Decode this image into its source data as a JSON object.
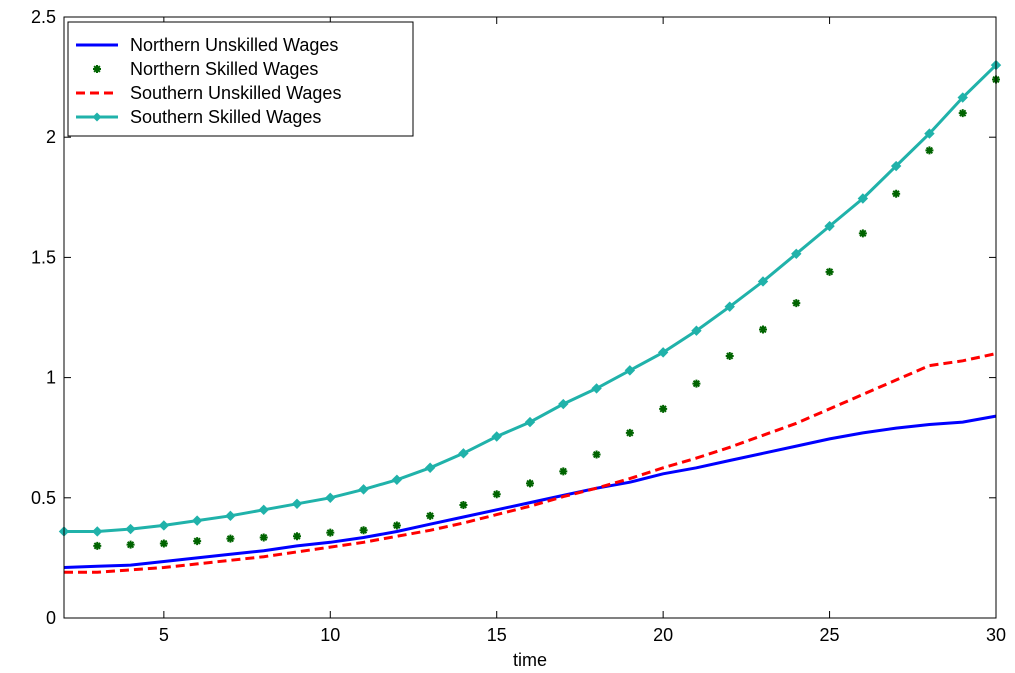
{
  "chart_data": {
    "type": "line",
    "title": "",
    "xlabel": "time",
    "ylabel": "",
    "xlim": [
      2,
      30
    ],
    "ylim": [
      0,
      2.5
    ],
    "xticks": [
      5,
      10,
      15,
      20,
      25,
      30
    ],
    "xtick_labels": [
      "5",
      "10",
      "15",
      "20",
      "25",
      "30"
    ],
    "yticks": [
      0,
      0.5,
      1,
      1.5,
      2,
      2.5
    ],
    "ytick_labels": [
      "0",
      "0.5",
      "1",
      "1.5",
      "2",
      "2.5"
    ],
    "grid": false,
    "legend_position": "top-left",
    "x": [
      2,
      3,
      4,
      5,
      6,
      7,
      8,
      9,
      10,
      11,
      12,
      13,
      14,
      15,
      16,
      17,
      18,
      19,
      20,
      21,
      22,
      23,
      24,
      25,
      26,
      27,
      28,
      29,
      30
    ],
    "series": [
      {
        "name": "Northern Unskilled Wages",
        "style": "solid-line",
        "color": "#0000ff",
        "values": [
          0.21,
          0.215,
          0.22,
          0.235,
          0.25,
          0.265,
          0.28,
          0.3,
          0.315,
          0.335,
          0.36,
          0.39,
          0.42,
          0.45,
          0.48,
          0.51,
          0.54,
          0.565,
          0.6,
          0.625,
          0.655,
          0.685,
          0.715,
          0.745,
          0.77,
          0.79,
          0.805,
          0.815,
          0.84
        ]
      },
      {
        "name": "Northern Skilled Wages",
        "style": "star-markers",
        "color": "#006400",
        "values": [
          null,
          0.3,
          0.305,
          0.31,
          0.32,
          0.33,
          0.335,
          0.34,
          0.355,
          0.365,
          0.385,
          0.425,
          0.47,
          0.515,
          0.56,
          0.61,
          0.68,
          0.77,
          0.87,
          0.975,
          1.09,
          1.2,
          1.31,
          1.44,
          1.6,
          1.765,
          1.945,
          2.1,
          2.24
        ]
      },
      {
        "name": "Southern Unskilled Wages",
        "style": "dashed-line",
        "color": "#ff0000",
        "values": [
          0.19,
          0.19,
          0.2,
          0.21,
          0.225,
          0.24,
          0.255,
          0.275,
          0.295,
          0.315,
          0.34,
          0.365,
          0.395,
          0.43,
          0.465,
          0.505,
          0.54,
          0.58,
          0.625,
          0.665,
          0.71,
          0.76,
          0.81,
          0.87,
          0.93,
          0.99,
          1.05,
          1.07,
          1.1
        ]
      },
      {
        "name": "Southern Skilled Wages",
        "style": "line-with-diamond-markers",
        "color": "#20b2aa",
        "values": [
          0.36,
          0.36,
          0.37,
          0.385,
          0.405,
          0.425,
          0.45,
          0.475,
          0.5,
          0.535,
          0.575,
          0.625,
          0.685,
          0.755,
          0.815,
          0.89,
          0.955,
          1.03,
          1.105,
          1.195,
          1.295,
          1.4,
          1.515,
          1.63,
          1.745,
          1.88,
          2.015,
          2.165,
          2.3
        ]
      }
    ]
  }
}
